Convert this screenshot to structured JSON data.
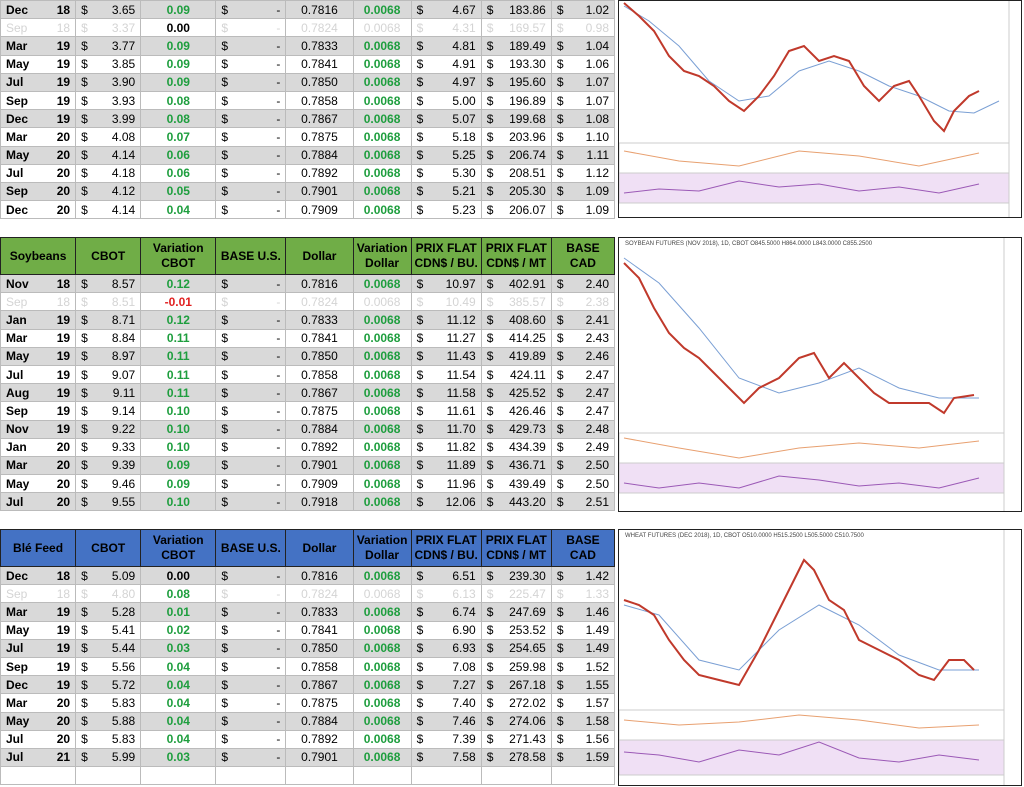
{
  "tables": [
    {
      "header": null,
      "rows": [
        {
          "cells": [
            "Dec 18",
            "$ 3.65",
            "0.09",
            "$ -",
            "0.7816",
            "0.0068",
            "$ 4.67",
            "$ 183.86",
            "$ 1.02"
          ]
        },
        {
          "faded": true,
          "cells": [
            "Sep 18",
            "$ 3.37",
            "0.00",
            "$ -",
            "0.7824",
            "0.0068",
            "$ 4.31",
            "$ 169.57",
            "$ 0.98"
          ]
        },
        {
          "cells": [
            "Mar 19",
            "$ 3.77",
            "0.09",
            "$ -",
            "0.7833",
            "0.0068",
            "$ 4.81",
            "$ 189.49",
            "$ 1.04"
          ]
        },
        {
          "cells": [
            "May 19",
            "$ 3.85",
            "0.09",
            "$ -",
            "0.7841",
            "0.0068",
            "$ 4.91",
            "$ 193.30",
            "$ 1.06"
          ]
        },
        {
          "cells": [
            "Jul 19",
            "$ 3.90",
            "0.09",
            "$ -",
            "0.7850",
            "0.0068",
            "$ 4.97",
            "$ 195.60",
            "$ 1.07"
          ]
        },
        {
          "cells": [
            "Sep 19",
            "$ 3.93",
            "0.08",
            "$ -",
            "0.7858",
            "0.0068",
            "$ 5.00",
            "$ 196.89",
            "$ 1.07"
          ]
        },
        {
          "cells": [
            "Dec 19",
            "$ 3.99",
            "0.08",
            "$ -",
            "0.7867",
            "0.0068",
            "$ 5.07",
            "$ 199.68",
            "$ 1.08"
          ]
        },
        {
          "cells": [
            "Mar 20",
            "$ 4.08",
            "0.07",
            "$ -",
            "0.7875",
            "0.0068",
            "$ 5.18",
            "$ 203.96",
            "$ 1.10"
          ]
        },
        {
          "cells": [
            "May 20",
            "$ 4.14",
            "0.06",
            "$ -",
            "0.7884",
            "0.0068",
            "$ 5.25",
            "$ 206.74",
            "$ 1.11"
          ]
        },
        {
          "cells": [
            "Jul 20",
            "$ 4.18",
            "0.06",
            "$ -",
            "0.7892",
            "0.0068",
            "$ 5.30",
            "$ 208.51",
            "$ 1.12"
          ]
        },
        {
          "cells": [
            "Sep 20",
            "$ 4.12",
            "0.05",
            "$ -",
            "0.7901",
            "0.0068",
            "$ 5.21",
            "$ 205.30",
            "$ 1.09"
          ]
        },
        {
          "cells": [
            "Dec 20",
            "$ 4.14",
            "0.04",
            "$ -",
            "0.7909",
            "0.0068",
            "$ 5.23",
            "$ 206.07",
            "$ 1.09"
          ]
        }
      ]
    },
    {
      "header": [
        "Soybeans",
        "CBOT",
        "Variation CBOT",
        "BASE U.S.",
        "Dollar",
        "Variation Dollar",
        "PRIX FLAT CDN$ / BU.",
        "PRIX FLAT CDN$ / MT",
        "BASE CAD"
      ],
      "header_color": "#70ad47",
      "chart_title": "SOYBEAN FUTURES (NOV 2018), 1D, CBOT  O845.5000 H864.0000 L843.0000 C855.2500",
      "rows": [
        {
          "cells": [
            "Nov 18",
            "$ 8.57",
            "0.12",
            "$ -",
            "0.7816",
            "0.0068",
            "$ 10.97",
            "$ 402.91",
            "$ 2.40"
          ]
        },
        {
          "faded": true,
          "cells": [
            "Sep 18",
            "$ 8.51",
            "-0.01",
            "$ -",
            "0.7824",
            "0.0068",
            "$ 10.49",
            "$ 385.57",
            "$ 2.38"
          ]
        },
        {
          "cells": [
            "Jan 19",
            "$ 8.71",
            "0.12",
            "$ -",
            "0.7833",
            "0.0068",
            "$ 11.12",
            "$ 408.60",
            "$ 2.41"
          ]
        },
        {
          "cells": [
            "Mar 19",
            "$ 8.84",
            "0.11",
            "$ -",
            "0.7841",
            "0.0068",
            "$ 11.27",
            "$ 414.25",
            "$ 2.43"
          ]
        },
        {
          "cells": [
            "May 19",
            "$ 8.97",
            "0.11",
            "$ -",
            "0.7850",
            "0.0068",
            "$ 11.43",
            "$ 419.89",
            "$ 2.46"
          ]
        },
        {
          "cells": [
            "Jul 19",
            "$ 9.07",
            "0.11",
            "$ -",
            "0.7858",
            "0.0068",
            "$ 11.54",
            "$ 424.11",
            "$ 2.47"
          ]
        },
        {
          "cells": [
            "Aug 19",
            "$ 9.11",
            "0.11",
            "$ -",
            "0.7867",
            "0.0068",
            "$ 11.58",
            "$ 425.52",
            "$ 2.47"
          ]
        },
        {
          "cells": [
            "Sep 19",
            "$ 9.14",
            "0.10",
            "$ -",
            "0.7875",
            "0.0068",
            "$ 11.61",
            "$ 426.46",
            "$ 2.47"
          ]
        },
        {
          "cells": [
            "Nov 19",
            "$ 9.22",
            "0.10",
            "$ -",
            "0.7884",
            "0.0068",
            "$ 11.70",
            "$ 429.73",
            "$ 2.48"
          ]
        },
        {
          "cells": [
            "Jan 20",
            "$ 9.33",
            "0.10",
            "$ -",
            "0.7892",
            "0.0068",
            "$ 11.82",
            "$ 434.39",
            "$ 2.49"
          ]
        },
        {
          "cells": [
            "Mar 20",
            "$ 9.39",
            "0.09",
            "$ -",
            "0.7901",
            "0.0068",
            "$ 11.89",
            "$ 436.71",
            "$ 2.50"
          ]
        },
        {
          "cells": [
            "May 20",
            "$ 9.46",
            "0.09",
            "$ -",
            "0.7909",
            "0.0068",
            "$ 11.96",
            "$ 439.49",
            "$ 2.50"
          ]
        },
        {
          "cells": [
            "Jul 20",
            "$ 9.55",
            "0.10",
            "$ -",
            "0.7918",
            "0.0068",
            "$ 12.06",
            "$ 443.20",
            "$ 2.51"
          ]
        }
      ]
    },
    {
      "header": [
        "Blé Feed",
        "CBOT",
        "Variation CBOT",
        "BASE U.S.",
        "Dollar",
        "Variation Dollar",
        "PRIX FLAT CDN$ / BU.",
        "PRIX FLAT CDN$ / MT",
        "BASE CAD"
      ],
      "header_color": "#4472c4",
      "chart_title": "WHEAT FUTURES (DEC 2018), 1D, CBOT  O510.0000 H515.2500 L505.5000 C510.7500",
      "rows": [
        {
          "cells": [
            "Dec 18",
            "$ 5.09",
            "0.00",
            "$ -",
            "0.7816",
            "0.0068",
            "$ 6.51",
            "$ 239.30",
            "$ 1.42"
          ]
        },
        {
          "faded": true,
          "cells": [
            "Sep 18",
            "$ 4.80",
            "0.08",
            "$ -",
            "0.7824",
            "0.0068",
            "$ 6.13",
            "$ 225.47",
            "$ 1.33"
          ]
        },
        {
          "cells": [
            "Mar 19",
            "$ 5.28",
            "0.01",
            "$ -",
            "0.7833",
            "0.0068",
            "$ 6.74",
            "$ 247.69",
            "$ 1.46"
          ]
        },
        {
          "cells": [
            "May 19",
            "$ 5.41",
            "0.02",
            "$ -",
            "0.7841",
            "0.0068",
            "$ 6.90",
            "$ 253.52",
            "$ 1.49"
          ]
        },
        {
          "cells": [
            "Jul 19",
            "$ 5.44",
            "0.03",
            "$ -",
            "0.7850",
            "0.0068",
            "$ 6.93",
            "$ 254.65",
            "$ 1.49"
          ]
        },
        {
          "cells": [
            "Sep 19",
            "$ 5.56",
            "0.04",
            "$ -",
            "0.7858",
            "0.0068",
            "$ 7.08",
            "$ 259.98",
            "$ 1.52"
          ]
        },
        {
          "cells": [
            "Dec 19",
            "$ 5.72",
            "0.04",
            "$ -",
            "0.7867",
            "0.0068",
            "$ 7.27",
            "$ 267.18",
            "$ 1.55"
          ]
        },
        {
          "cells": [
            "Mar 20",
            "$ 5.83",
            "0.04",
            "$ -",
            "0.7875",
            "0.0068",
            "$ 7.40",
            "$ 272.02",
            "$ 1.57"
          ]
        },
        {
          "cells": [
            "May 20",
            "$ 5.88",
            "0.04",
            "$ -",
            "0.7884",
            "0.0068",
            "$ 7.46",
            "$ 274.06",
            "$ 1.58"
          ]
        },
        {
          "cells": [
            "Jul 20",
            "$ 5.83",
            "0.04",
            "$ -",
            "0.7892",
            "0.0068",
            "$ 7.39",
            "$ 271.43",
            "$ 1.56"
          ]
        },
        {
          "cells": [
            "Jul 21",
            "$ 5.99",
            "0.03",
            "$ -",
            "0.7901",
            "0.0068",
            "$ 7.58",
            "$ 278.58",
            "$ 1.59"
          ]
        }
      ]
    }
  ]
}
